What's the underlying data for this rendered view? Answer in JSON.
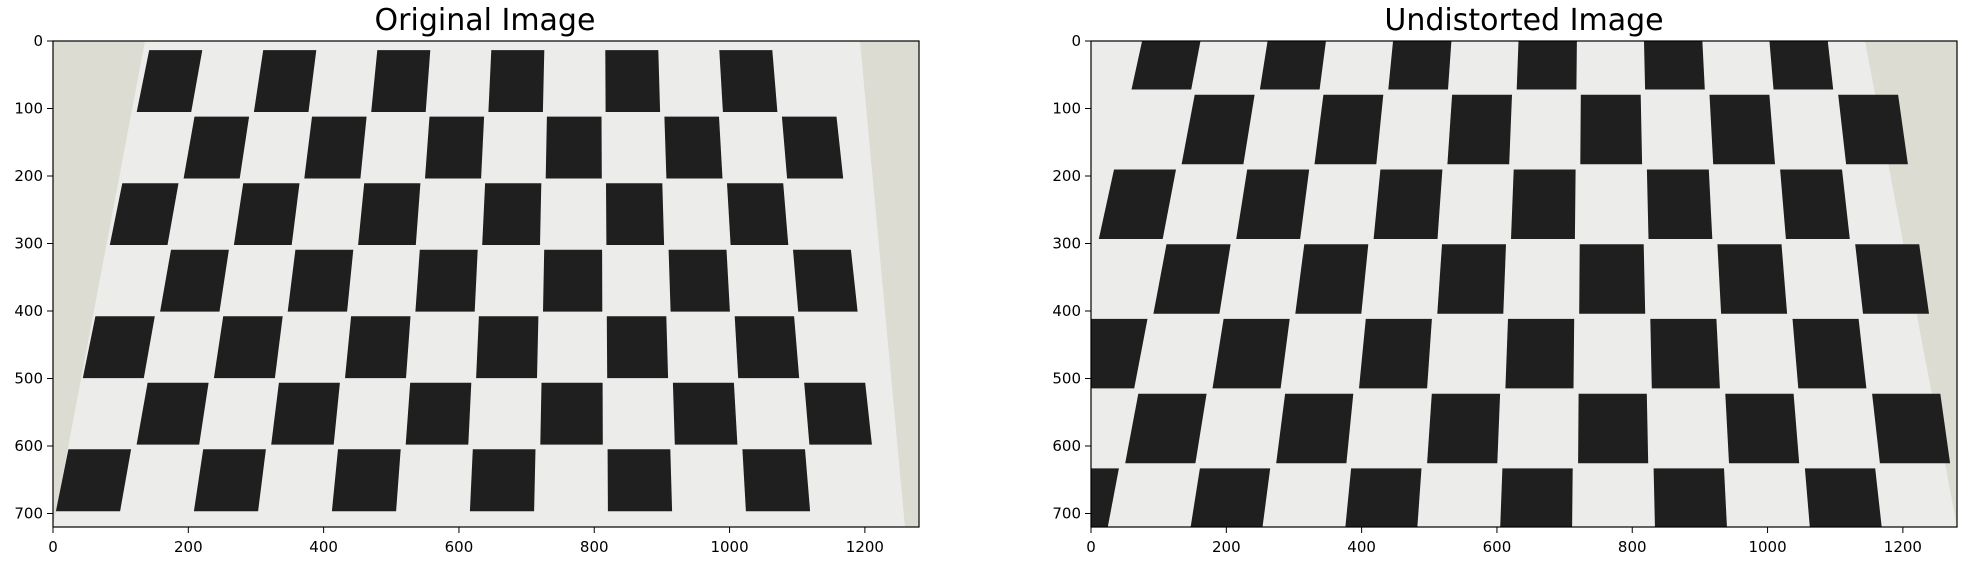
{
  "figure": {
    "panels": [
      {
        "id": "original",
        "title": "Original Image",
        "x_ticks": [
          "0",
          "200",
          "400",
          "600",
          "800",
          "1000",
          "1200"
        ],
        "y_ticks": [
          "0",
          "100",
          "200",
          "300",
          "400",
          "500",
          "600",
          "700"
        ],
        "xlim": [
          0,
          1280
        ],
        "ylim": [
          0,
          720
        ],
        "x_tick_values": [
          0,
          200,
          400,
          600,
          800,
          1000,
          1200
        ],
        "y_tick_values": [
          0,
          100,
          200,
          300,
          400,
          500,
          600,
          700
        ]
      },
      {
        "id": "undistorted",
        "title": "Undistorted Image",
        "x_ticks": [
          "0",
          "200",
          "400",
          "600",
          "800",
          "1000",
          "1200"
        ],
        "y_ticks": [
          "0",
          "100",
          "200",
          "300",
          "400",
          "500",
          "600",
          "700"
        ],
        "xlim": [
          0,
          1280
        ],
        "ylim": [
          0,
          720
        ],
        "x_tick_values": [
          0,
          200,
          400,
          600,
          800,
          1000,
          1200
        ],
        "y_tick_values": [
          0,
          100,
          200,
          300,
          400,
          500,
          600,
          700
        ]
      }
    ],
    "colors": {
      "wall": "#dcdcd2",
      "paper": "#ececeb",
      "square": "#1f1f1f",
      "axis": "#000000"
    }
  }
}
